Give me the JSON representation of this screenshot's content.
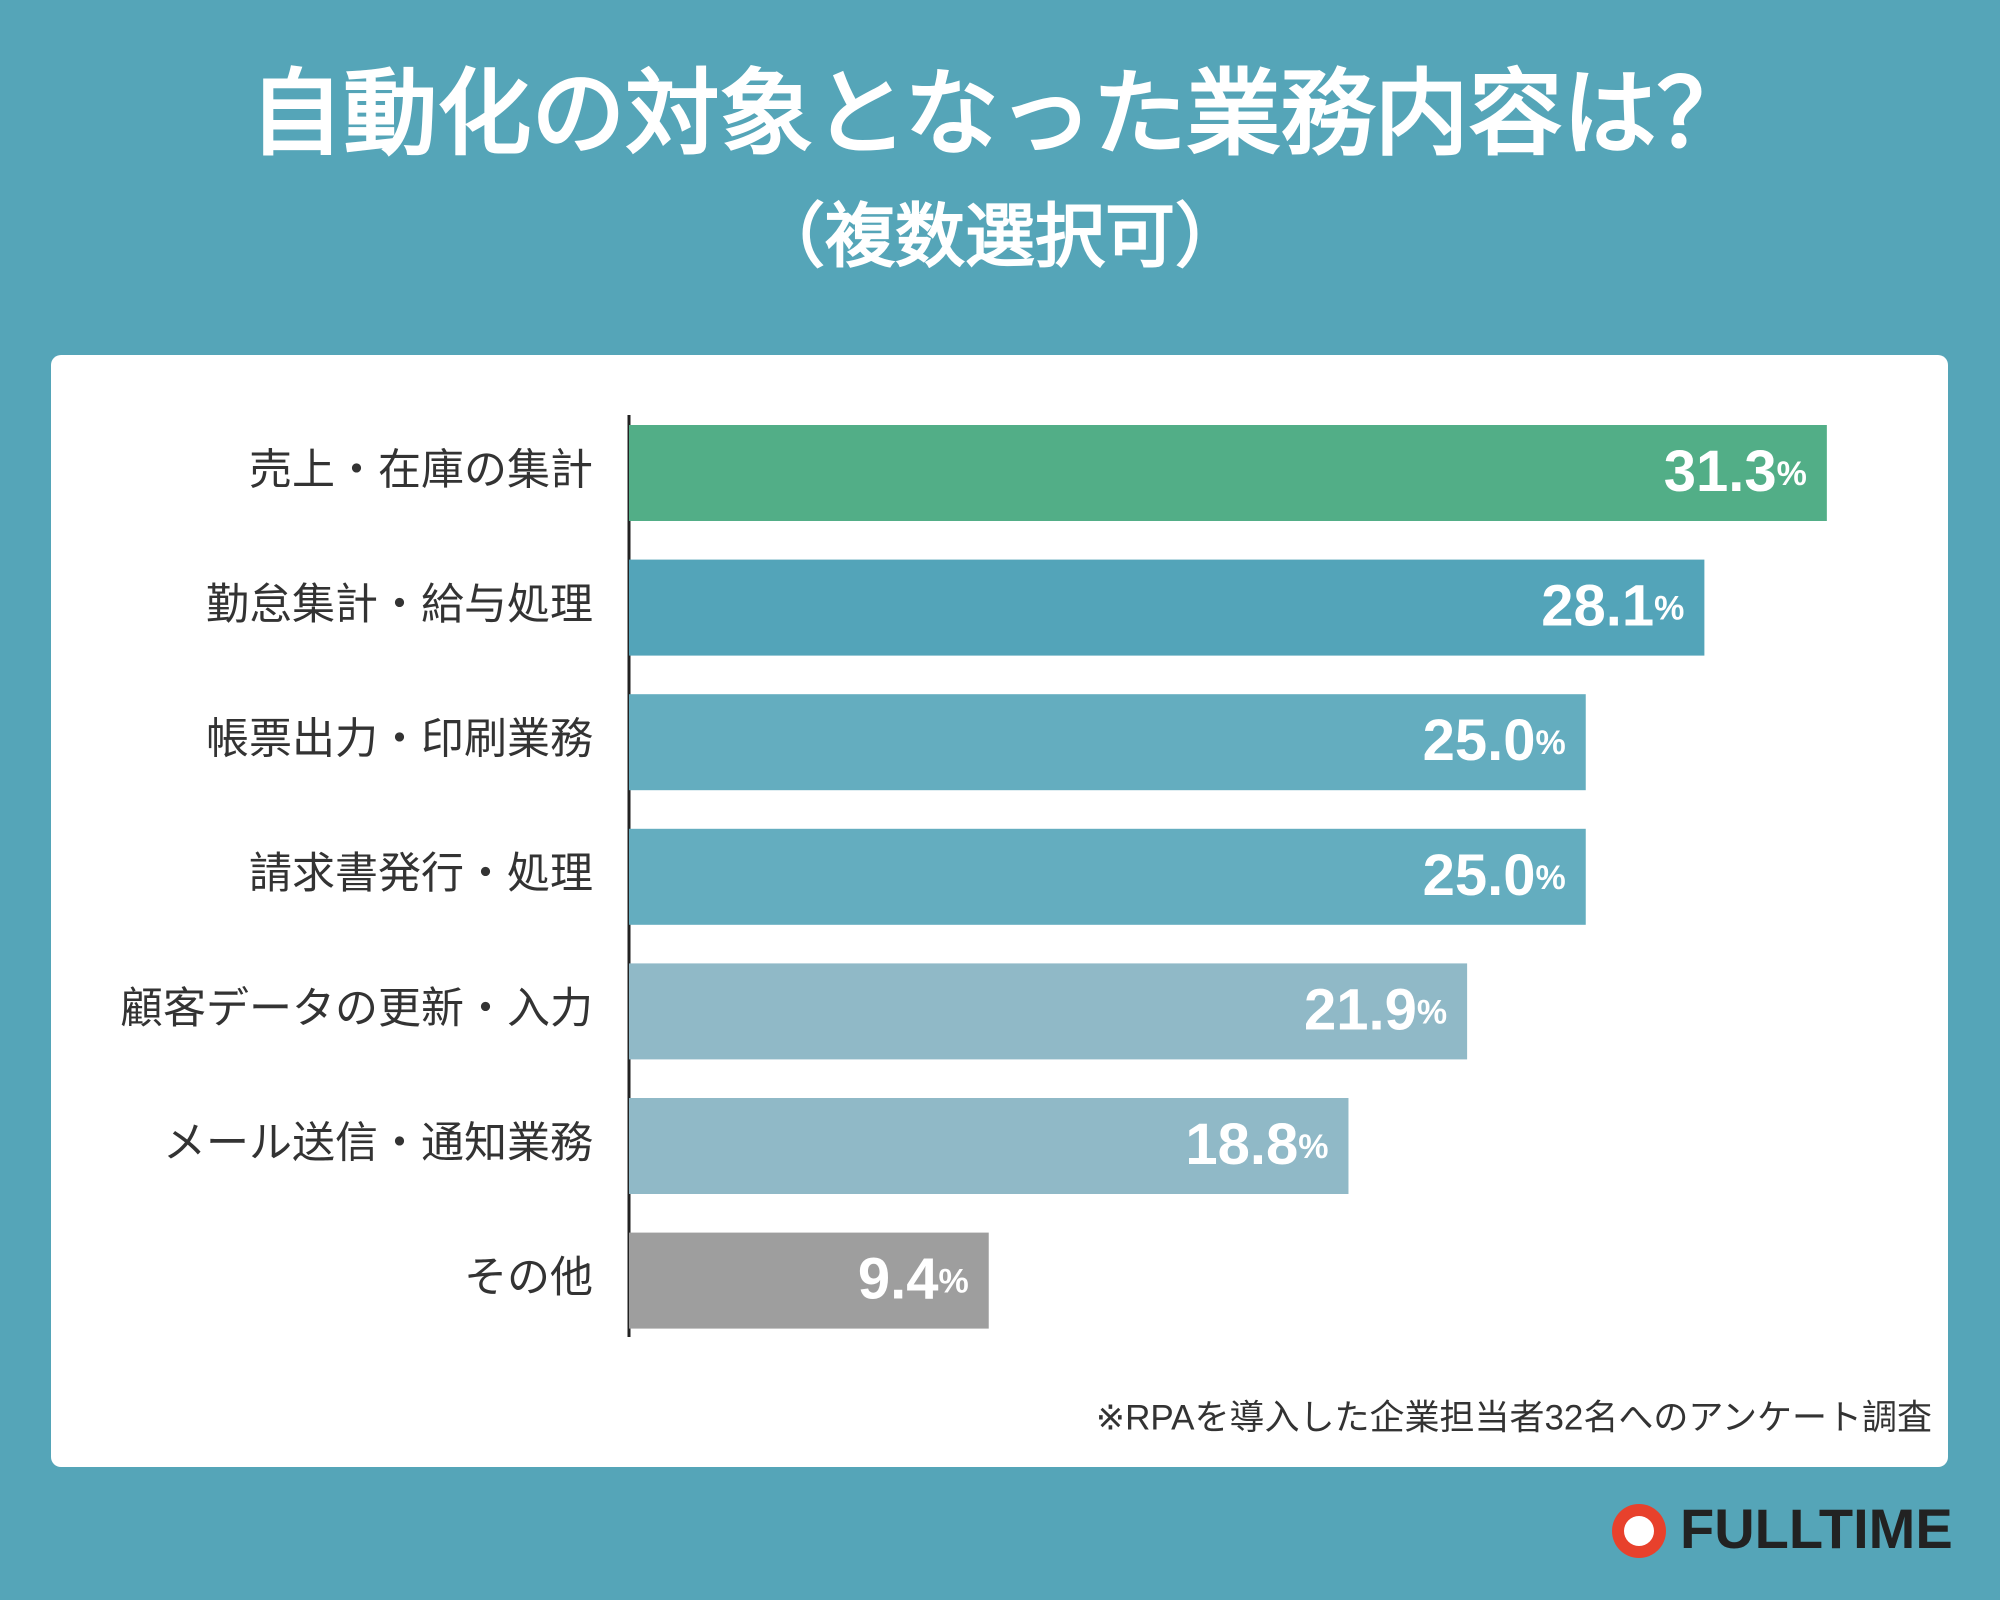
{
  "chart_data": {
    "type": "bar",
    "title": "自動化の対象となった業務内容は？",
    "subtitle": "（複数選択可）",
    "categories": [
      "売上・在庫の集計",
      "勤怠集計・給与処理",
      "帳票出力・印刷業務",
      "請求書発行・処理",
      "顧客データの更新・入力",
      "メール送信・通知業務",
      "その他"
    ],
    "values": [
      31.3,
      28.1,
      25.0,
      25.0,
      21.9,
      18.8,
      9.4
    ],
    "value_labels": [
      "31.3%",
      "28.1%",
      "25.0%",
      "25.0%",
      "21.9%",
      "18.8%",
      "9.4%"
    ],
    "colors": [
      "#52ae87",
      "#53a4b9",
      "#64adbf",
      "#64adbf",
      "#90b9c7",
      "#90b9c7",
      "#9e9e9e"
    ],
    "note": "※RPAを導入した企業担当者32名へのアンケート調査"
  },
  "logo": "FULLTIME"
}
